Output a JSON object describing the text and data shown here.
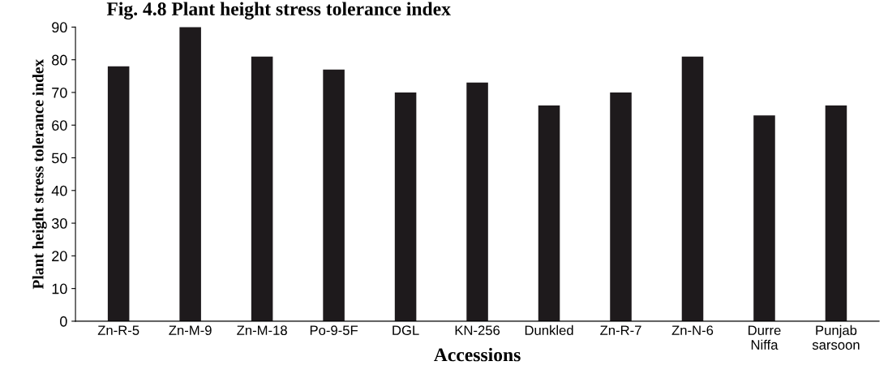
{
  "chart_data": {
    "type": "bar",
    "title": "Fig. 4.8 Plant height stress tolerance index",
    "xlabel": "Accessions",
    "ylabel": "Plant height stress tolerance index",
    "categories": [
      "Zn-R-5",
      "Zn-M-9",
      "Zn-M-18",
      "Po-9-5F",
      "DGL",
      "KN-256",
      "Dunkled",
      "Zn-R-7",
      "Zn-N-6",
      "Durre\nNiffa",
      "Punjab\nsarsoon"
    ],
    "values": [
      78,
      90,
      81,
      77,
      70,
      73,
      66,
      70,
      81,
      63,
      66
    ],
    "color": "#1e1a1c",
    "ylim": [
      0,
      90
    ],
    "yticks": [
      0,
      10,
      20,
      30,
      40,
      50,
      60,
      70,
      80,
      90
    ],
    "grid": false
  }
}
